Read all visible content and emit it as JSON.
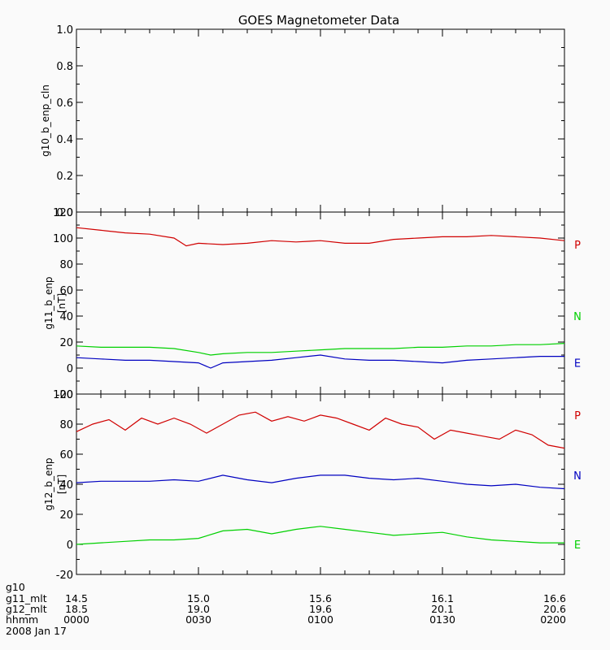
{
  "chart_data": {
    "type": "line",
    "title": "GOES Magnetometer Data",
    "date_label": "2008 Jan 17",
    "x_axis": {
      "row_labels": [
        "g10",
        "g11_mlt",
        "g12_mlt",
        "hhmm"
      ],
      "ticks": [
        {
          "minutes": 0,
          "g11_mlt": "14.5",
          "g12_mlt": "18.5",
          "hhmm": "0000"
        },
        {
          "minutes": 30,
          "g11_mlt": "15.0",
          "g12_mlt": "19.0",
          "hhmm": "0030"
        },
        {
          "minutes": 60,
          "g11_mlt": "15.6",
          "g12_mlt": "19.6",
          "hhmm": "0100"
        },
        {
          "minutes": 90,
          "g11_mlt": "16.1",
          "g12_mlt": "20.1",
          "hhmm": "0130"
        },
        {
          "minutes": 120,
          "g11_mlt": "16.6",
          "g12_mlt": "20.6",
          "hhmm": "0200"
        }
      ],
      "range_minutes": [
        0,
        120
      ],
      "minor_tick_minutes": 6
    },
    "panels": [
      {
        "ylabel": "g10_b_enp_cln",
        "unit": "",
        "ylim": [
          0,
          1
        ],
        "yticks": [
          "0.0",
          "0.2",
          "0.4",
          "0.6",
          "0.8",
          "1.0"
        ],
        "series": []
      },
      {
        "ylabel": "g11_b_enp",
        "unit": "[nT]",
        "ylim": [
          -20,
          120
        ],
        "yticks": [
          "-20",
          "0",
          "20",
          "40",
          "60",
          "80",
          "100",
          "120"
        ],
        "series": [
          {
            "name": "P",
            "color": "#d00000",
            "label_value": 95,
            "x": [
              0,
              6,
              12,
              18,
              24,
              27,
              30,
              36,
              42,
              48,
              54,
              60,
              66,
              72,
              78,
              84,
              90,
              96,
              102,
              108,
              114,
              120
            ],
            "y": [
              108,
              106,
              104,
              103,
              100,
              94,
              96,
              95,
              96,
              98,
              97,
              98,
              96,
              96,
              99,
              100,
              101,
              101,
              102,
              101,
              100,
              98
            ]
          },
          {
            "name": "N",
            "color": "#00d000",
            "label_value": 40,
            "x": [
              0,
              6,
              12,
              18,
              24,
              30,
              33,
              36,
              42,
              48,
              54,
              60,
              66,
              72,
              78,
              84,
              90,
              96,
              102,
              108,
              114,
              120
            ],
            "y": [
              17,
              16,
              16,
              16,
              15,
              12,
              10,
              11,
              12,
              12,
              13,
              14,
              15,
              15,
              15,
              16,
              16,
              17,
              17,
              18,
              18,
              19
            ]
          },
          {
            "name": "E",
            "color": "#0000c0",
            "label_value": 4,
            "x": [
              0,
              6,
              12,
              18,
              24,
              30,
              33,
              36,
              42,
              48,
              54,
              60,
              66,
              72,
              78,
              84,
              90,
              96,
              102,
              108,
              114,
              120
            ],
            "y": [
              8,
              7,
              6,
              6,
              5,
              4,
              0,
              4,
              5,
              6,
              8,
              10,
              7,
              6,
              6,
              5,
              4,
              6,
              7,
              8,
              9,
              9
            ]
          }
        ]
      },
      {
        "ylabel": "g12_b_enp",
        "unit": "[nT]",
        "ylim": [
          -20,
          100
        ],
        "yticks": [
          "-20",
          "0",
          "20",
          "40",
          "60",
          "80",
          "100"
        ],
        "series": [
          {
            "name": "P",
            "color": "#d00000",
            "label_value": 86,
            "x": [
              0,
              4,
              8,
              12,
              16,
              20,
              24,
              28,
              32,
              36,
              40,
              44,
              48,
              52,
              56,
              60,
              64,
              68,
              72,
              76,
              80,
              84,
              88,
              92,
              96,
              100,
              104,
              108,
              112,
              116,
              120
            ],
            "y": [
              75,
              80,
              83,
              76,
              84,
              80,
              84,
              80,
              74,
              80,
              86,
              88,
              82,
              85,
              82,
              86,
              84,
              80,
              76,
              84,
              80,
              78,
              70,
              76,
              74,
              72,
              70,
              76,
              73,
              66,
              64
            ]
          },
          {
            "name": "N",
            "color": "#0000c0",
            "label_value": 46,
            "x": [
              0,
              6,
              12,
              18,
              24,
              30,
              36,
              42,
              48,
              54,
              60,
              66,
              72,
              78,
              84,
              90,
              96,
              102,
              108,
              114,
              120
            ],
            "y": [
              41,
              42,
              42,
              42,
              43,
              42,
              46,
              43,
              41,
              44,
              46,
              46,
              44,
              43,
              44,
              42,
              40,
              39,
              40,
              38,
              37
            ]
          },
          {
            "name": "E",
            "color": "#00d000",
            "label_value": 0,
            "x": [
              0,
              6,
              12,
              18,
              24,
              30,
              36,
              42,
              48,
              54,
              60,
              66,
              72,
              78,
              84,
              90,
              96,
              102,
              108,
              114,
              120
            ],
            "y": [
              0,
              1,
              2,
              3,
              3,
              4,
              9,
              10,
              7,
              10,
              12,
              10,
              8,
              6,
              7,
              8,
              5,
              3,
              2,
              1,
              1
            ]
          }
        ]
      }
    ]
  }
}
